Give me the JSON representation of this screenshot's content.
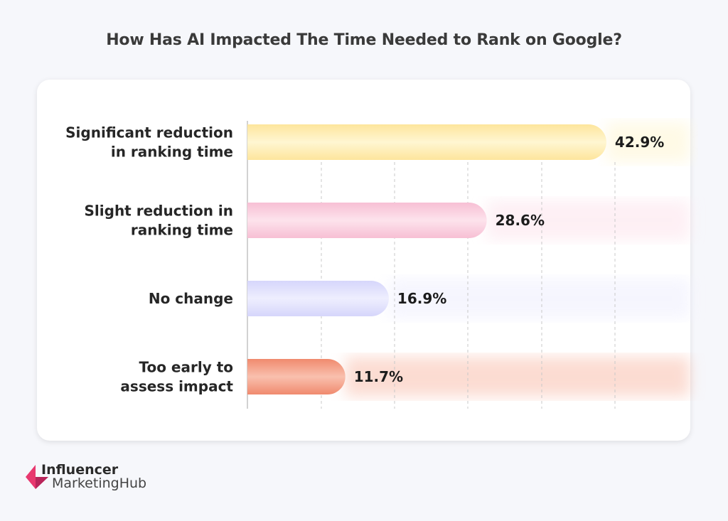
{
  "chart_data": {
    "type": "bar",
    "orientation": "horizontal",
    "title": "How Has AI Impacted The Time Needed to Rank on Google?",
    "categories": [
      [
        "Significant reduction",
        "in ranking time"
      ],
      [
        "Slight reduction in",
        "ranking time"
      ],
      [
        "No change"
      ],
      [
        "Too early to",
        "assess impact"
      ]
    ],
    "values": [
      42.9,
      28.6,
      16.9,
      11.7
    ],
    "value_labels": [
      "42.9%",
      "28.6%",
      "16.9%",
      "11.7%"
    ],
    "colors": [
      [
        "#fde59c",
        "#fff6d2"
      ],
      [
        "#f7bfd4",
        "#fde3ec"
      ],
      [
        "#d6d6fb",
        "#eeeefe"
      ],
      [
        "#f08a6e",
        "#f9c0ae"
      ]
    ],
    "xlim": [
      0,
      52
    ],
    "grid": true,
    "xlabel": "",
    "ylabel": ""
  },
  "logo": {
    "line1": "Influencer",
    "line2": "MarketingHub"
  }
}
